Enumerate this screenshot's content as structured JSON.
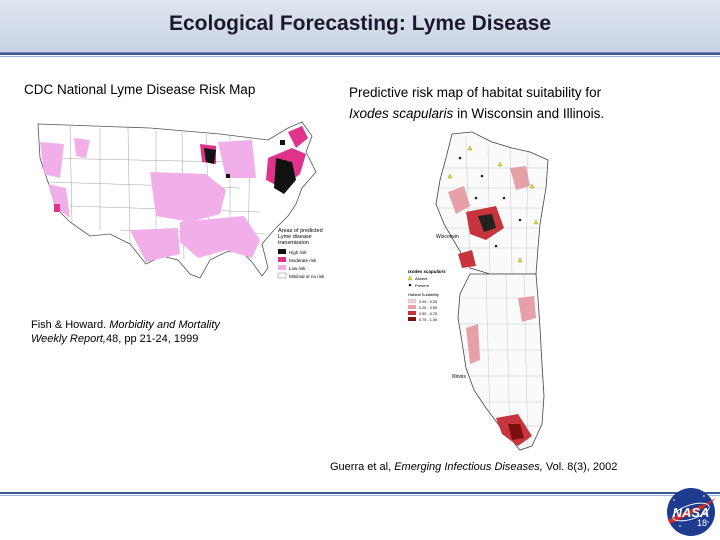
{
  "slide": {
    "title": "Ecological Forecasting: Lyme Disease",
    "slide_number": "18"
  },
  "left_panel": {
    "heading": "CDC National Lyme Disease Risk Map",
    "map_legend": {
      "title_line1": "Areas of predicted",
      "title_line2": "Lyme disease",
      "title_line3": "transmission",
      "items": [
        "High risk",
        "Moderate risk",
        "Low risk",
        "Minimal or no risk"
      ]
    },
    "citation_line1_plain": "Fish & Howard.",
    "citation_line1_italic": "Morbidity and Mortality",
    "citation_line2_italic": "Weekly Report,",
    "citation_line2_plain": "48, pp 21-24, 1999",
    "colors": {
      "high": "#111111",
      "moderate": "#e0338a",
      "low": "#f2aee8",
      "minimal": "#ffffff"
    }
  },
  "right_panel": {
    "heading_line1": "Predictive risk map of habitat suitability for",
    "heading_species": "Ixodes scapularis",
    "heading_line2_rest": "in Wisconsin and Illinois.",
    "state_labels": [
      "Wisconsin",
      "Illinois"
    ],
    "legend": {
      "title": "Ixodes scapularis",
      "absent": "Absent",
      "present": "Present",
      "suitability_title": "Habitat Suitability",
      "ranges": [
        "0.00 - 0.25",
        "0.25 - 0.50",
        "0.50 - 0.75",
        "0.75 - 1.00"
      ]
    },
    "citation_plain1": "Guerra et al,",
    "citation_italic": "Emerging Infectious Diseases,",
    "citation_plain2": "Vol. 8(3), 2002"
  },
  "footer": {
    "logo_text": "NASA"
  }
}
